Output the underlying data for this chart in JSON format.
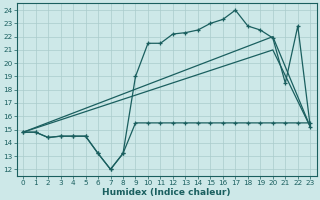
{
  "bg_color": "#cde8e8",
  "grid_color": "#aacccc",
  "line_color": "#1a5f5f",
  "xlabel": "Humidex (Indice chaleur)",
  "xlim": [
    -0.5,
    23.5
  ],
  "ylim": [
    11.5,
    24.5
  ],
  "yticks": [
    12,
    13,
    14,
    15,
    16,
    17,
    18,
    19,
    20,
    21,
    22,
    23,
    24
  ],
  "xticks": [
    0,
    1,
    2,
    3,
    4,
    5,
    6,
    7,
    8,
    9,
    10,
    11,
    12,
    13,
    14,
    15,
    16,
    17,
    18,
    19,
    20,
    21,
    22,
    23
  ],
  "line1_x": [
    0,
    1,
    2,
    3,
    4,
    5,
    6,
    7,
    8,
    9,
    10,
    11,
    12,
    13,
    14,
    15,
    16,
    17,
    18,
    19,
    20,
    21,
    22,
    23
  ],
  "line1_y": [
    14.8,
    14.8,
    14.4,
    14.5,
    14.5,
    14.5,
    13.2,
    12.0,
    13.2,
    15.5,
    15.5,
    15.5,
    15.5,
    15.5,
    15.5,
    15.5,
    15.5,
    15.5,
    15.5,
    15.5,
    15.5,
    15.5,
    15.5,
    15.5
  ],
  "line2_x": [
    0,
    1,
    2,
    3,
    4,
    5,
    6,
    7,
    8,
    9,
    10,
    11,
    12,
    13,
    14,
    15,
    16,
    17,
    18,
    19,
    20,
    21,
    22,
    23
  ],
  "line2_y": [
    14.8,
    14.8,
    14.4,
    14.5,
    14.5,
    14.5,
    13.2,
    12.0,
    13.2,
    19.0,
    21.5,
    21.5,
    22.2,
    22.3,
    22.5,
    23.0,
    23.3,
    24.0,
    22.8,
    22.5,
    21.9,
    18.5,
    22.8,
    15.2
  ],
  "line3_x": [
    0,
    20,
    23
  ],
  "line3_y": [
    14.8,
    22.0,
    15.2
  ],
  "line4_x": [
    0,
    20,
    23
  ],
  "line4_y": [
    14.8,
    21.0,
    15.2
  ]
}
